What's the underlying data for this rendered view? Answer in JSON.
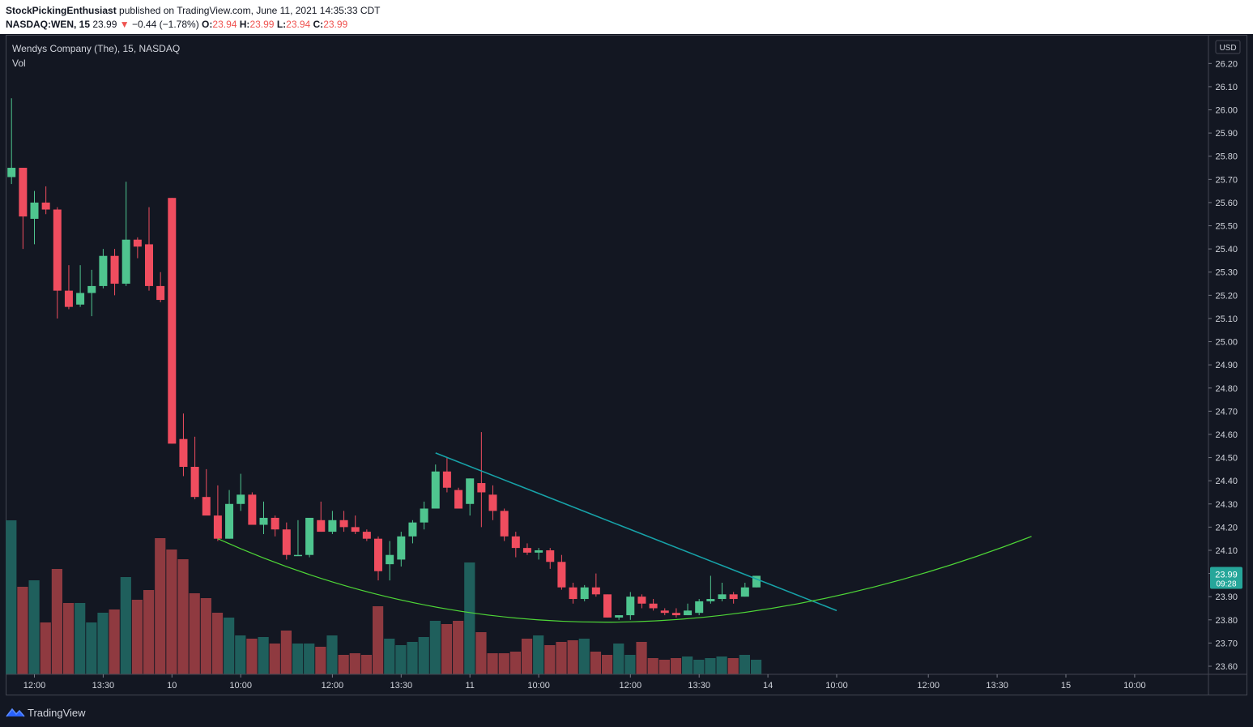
{
  "header": {
    "author": "StockPickingEnthusiast",
    "published_text": "published on TradingView.com, June 11, 2021 14:35:33 CDT",
    "symbol": "NASDAQ:WEN, 15",
    "last": "23.99",
    "change_arrow": "▼",
    "change": "−0.44 (−1.78%)",
    "o_label": "O:",
    "o_value": "23.94",
    "h_label": "H:",
    "h_value": "23.99",
    "l_label": "L:",
    "l_value": "23.94",
    "c_label": "C:",
    "c_value": "23.99"
  },
  "legend": {
    "title": "Wendys Company (The), 15, NASDAQ",
    "volume_label": "Vol"
  },
  "price_tag": {
    "price": "23.99",
    "countdown": "09:28",
    "color": "#26a69a"
  },
  "currency": "USD",
  "footer": {
    "brand": "TradingView"
  },
  "colors": {
    "up": "#4fc58f",
    "down": "#f04d5f",
    "vol_up": "#1f5f5c",
    "vol_down": "#8f3a40",
    "trendline": "#17a2a8",
    "curve": "#4ed637",
    "background": "#131722"
  },
  "chart_data": {
    "type": "candlestick",
    "price_axis": {
      "ylim": [
        23.565,
        26.32
      ],
      "ticks": [
        "26.20",
        "26.10",
        "26.00",
        "25.90",
        "25.80",
        "25.70",
        "25.60",
        "25.50",
        "25.40",
        "25.30",
        "25.20",
        "25.10",
        "25.00",
        "24.90",
        "24.80",
        "24.70",
        "24.60",
        "24.50",
        "24.40",
        "24.30",
        "24.20",
        "24.10",
        "24.00",
        "23.90",
        "23.80",
        "23.70",
        "23.60"
      ]
    },
    "time_axis": {
      "labels": [
        "12:00",
        "13:30",
        "10",
        "10:00",
        "12:00",
        "13:30",
        "11",
        "10:00",
        "12:00",
        "13:30",
        "14",
        "10:00",
        "12:00",
        "13:30",
        "15",
        "10:00"
      ],
      "label_bar_index": [
        2,
        8,
        14,
        20,
        28,
        34,
        40,
        46,
        54,
        60,
        66,
        72,
        80,
        86,
        92,
        98
      ]
    },
    "candles": [
      {
        "o": 25.71,
        "h": 26.05,
        "l": 25.68,
        "c": 25.75
      },
      {
        "o": 25.75,
        "h": 25.75,
        "l": 25.4,
        "c": 25.54
      },
      {
        "o": 25.53,
        "h": 25.65,
        "l": 25.42,
        "c": 25.6
      },
      {
        "o": 25.6,
        "h": 25.67,
        "l": 25.55,
        "c": 25.57
      },
      {
        "o": 25.57,
        "h": 25.58,
        "l": 25.1,
        "c": 25.22
      },
      {
        "o": 25.22,
        "h": 25.33,
        "l": 25.14,
        "c": 25.15
      },
      {
        "o": 25.16,
        "h": 25.33,
        "l": 25.15,
        "c": 25.21
      },
      {
        "o": 25.21,
        "h": 25.31,
        "l": 25.11,
        "c": 25.24
      },
      {
        "o": 25.24,
        "h": 25.4,
        "l": 25.23,
        "c": 25.37
      },
      {
        "o": 25.37,
        "h": 25.4,
        "l": 25.2,
        "c": 25.25
      },
      {
        "o": 25.25,
        "h": 25.69,
        "l": 25.24,
        "c": 25.44
      },
      {
        "o": 25.44,
        "h": 25.45,
        "l": 25.36,
        "c": 25.41
      },
      {
        "o": 25.42,
        "h": 25.58,
        "l": 25.22,
        "c": 25.24
      },
      {
        "o": 25.24,
        "h": 25.3,
        "l": 25.17,
        "c": 25.18
      },
      {
        "o": 25.62,
        "h": 25.62,
        "l": 24.56,
        "c": 24.56
      },
      {
        "o": 24.58,
        "h": 24.69,
        "l": 24.42,
        "c": 24.46
      },
      {
        "o": 24.46,
        "h": 24.59,
        "l": 24.32,
        "c": 24.33
      },
      {
        "o": 24.33,
        "h": 24.45,
        "l": 24.26,
        "c": 24.25
      },
      {
        "o": 24.25,
        "h": 24.38,
        "l": 24.14,
        "c": 24.15
      },
      {
        "o": 24.15,
        "h": 24.36,
        "l": 24.15,
        "c": 24.3
      },
      {
        "o": 24.3,
        "h": 24.43,
        "l": 24.27,
        "c": 24.34
      },
      {
        "o": 24.34,
        "h": 24.35,
        "l": 24.21,
        "c": 24.21
      },
      {
        "o": 24.21,
        "h": 24.31,
        "l": 24.17,
        "c": 24.24
      },
      {
        "o": 24.24,
        "h": 24.25,
        "l": 24.16,
        "c": 24.19
      },
      {
        "o": 24.19,
        "h": 24.22,
        "l": 24.06,
        "c": 24.08
      },
      {
        "o": 24.08,
        "h": 24.23,
        "l": 24.08,
        "c": 24.08
      },
      {
        "o": 24.08,
        "h": 24.23,
        "l": 24.07,
        "c": 24.24
      },
      {
        "o": 24.23,
        "h": 24.31,
        "l": 24.18,
        "c": 24.18
      },
      {
        "o": 24.18,
        "h": 24.27,
        "l": 24.17,
        "c": 24.23
      },
      {
        "o": 24.23,
        "h": 24.27,
        "l": 24.18,
        "c": 24.2
      },
      {
        "o": 24.2,
        "h": 24.25,
        "l": 24.17,
        "c": 24.18
      },
      {
        "o": 24.18,
        "h": 24.19,
        "l": 24.14,
        "c": 24.15
      },
      {
        "o": 24.15,
        "h": 24.16,
        "l": 23.97,
        "c": 24.01
      },
      {
        "o": 24.04,
        "h": 24.14,
        "l": 23.97,
        "c": 24.08
      },
      {
        "o": 24.06,
        "h": 24.18,
        "l": 24.03,
        "c": 24.16
      },
      {
        "o": 24.16,
        "h": 24.23,
        "l": 24.13,
        "c": 24.22
      },
      {
        "o": 24.22,
        "h": 24.31,
        "l": 24.19,
        "c": 24.28
      },
      {
        "o": 24.28,
        "h": 24.47,
        "l": 24.28,
        "c": 24.44
      },
      {
        "o": 24.44,
        "h": 24.5,
        "l": 24.35,
        "c": 24.37
      },
      {
        "o": 24.36,
        "h": 24.37,
        "l": 24.28,
        "c": 24.28
      },
      {
        "o": 24.3,
        "h": 24.41,
        "l": 24.25,
        "c": 24.41
      },
      {
        "o": 24.39,
        "h": 24.61,
        "l": 24.2,
        "c": 24.35
      },
      {
        "o": 24.34,
        "h": 24.38,
        "l": 24.23,
        "c": 24.27
      },
      {
        "o": 24.27,
        "h": 24.28,
        "l": 24.14,
        "c": 24.16
      },
      {
        "o": 24.16,
        "h": 24.18,
        "l": 24.07,
        "c": 24.11
      },
      {
        "o": 24.11,
        "h": 24.13,
        "l": 24.08,
        "c": 24.09
      },
      {
        "o": 24.09,
        "h": 24.11,
        "l": 24.06,
        "c": 24.1
      },
      {
        "o": 24.1,
        "h": 24.11,
        "l": 24.02,
        "c": 24.05
      },
      {
        "o": 24.05,
        "h": 24.08,
        "l": 23.93,
        "c": 23.94
      },
      {
        "o": 23.94,
        "h": 23.96,
        "l": 23.87,
        "c": 23.89
      },
      {
        "o": 23.89,
        "h": 23.95,
        "l": 23.88,
        "c": 23.94
      },
      {
        "o": 23.94,
        "h": 24.0,
        "l": 23.9,
        "c": 23.91
      },
      {
        "o": 23.91,
        "h": 23.91,
        "l": 23.81,
        "c": 23.81
      },
      {
        "o": 23.81,
        "h": 23.82,
        "l": 23.8,
        "c": 23.82
      },
      {
        "o": 23.82,
        "h": 23.92,
        "l": 23.8,
        "c": 23.9
      },
      {
        "o": 23.9,
        "h": 23.91,
        "l": 23.85,
        "c": 23.87
      },
      {
        "o": 23.87,
        "h": 23.89,
        "l": 23.84,
        "c": 23.85
      },
      {
        "o": 23.84,
        "h": 23.85,
        "l": 23.82,
        "c": 23.83
      },
      {
        "o": 23.83,
        "h": 23.85,
        "l": 23.81,
        "c": 23.82
      },
      {
        "o": 23.82,
        "h": 23.87,
        "l": 23.82,
        "c": 23.84
      },
      {
        "o": 23.83,
        "h": 23.89,
        "l": 23.82,
        "c": 23.88
      },
      {
        "o": 23.88,
        "h": 23.99,
        "l": 23.87,
        "c": 23.89
      },
      {
        "o": 23.89,
        "h": 23.96,
        "l": 23.88,
        "c": 23.91
      },
      {
        "o": 23.91,
        "h": 23.92,
        "l": 23.87,
        "c": 23.89
      },
      {
        "o": 23.9,
        "h": 23.96,
        "l": 23.9,
        "c": 23.94
      },
      {
        "o": 23.94,
        "h": 23.99,
        "l": 23.94,
        "c": 23.99
      }
    ],
    "volume_rel": [
      0.95,
      0.54,
      0.58,
      0.32,
      0.65,
      0.44,
      0.44,
      0.32,
      0.38,
      0.4,
      0.6,
      0.46,
      0.52,
      0.84,
      0.77,
      0.71,
      0.5,
      0.47,
      0.38,
      0.35,
      0.24,
      0.22,
      0.23,
      0.19,
      0.27,
      0.19,
      0.19,
      0.17,
      0.24,
      0.12,
      0.13,
      0.12,
      0.42,
      0.22,
      0.18,
      0.2,
      0.23,
      0.33,
      0.31,
      0.33,
      0.69,
      0.26,
      0.13,
      0.13,
      0.14,
      0.22,
      0.24,
      0.18,
      0.2,
      0.21,
      0.22,
      0.14,
      0.12,
      0.19,
      0.12,
      0.2,
      0.1,
      0.09,
      0.1,
      0.11,
      0.09,
      0.1,
      0.11,
      0.1,
      0.12,
      0.09
    ],
    "drawings": [
      {
        "name": "descending trendline",
        "color": "#17a2a8",
        "points": [
          {
            "bar": 37,
            "price": 24.52
          },
          {
            "bar": 72,
            "price": 23.84
          }
        ]
      },
      {
        "name": "rounded bottom curve",
        "color": "#4ed637",
        "points": [
          {
            "bar": 18,
            "price": 24.15
          },
          {
            "bar": 52,
            "price": 23.79
          },
          {
            "bar": 89,
            "price": 24.16
          }
        ]
      }
    ]
  }
}
